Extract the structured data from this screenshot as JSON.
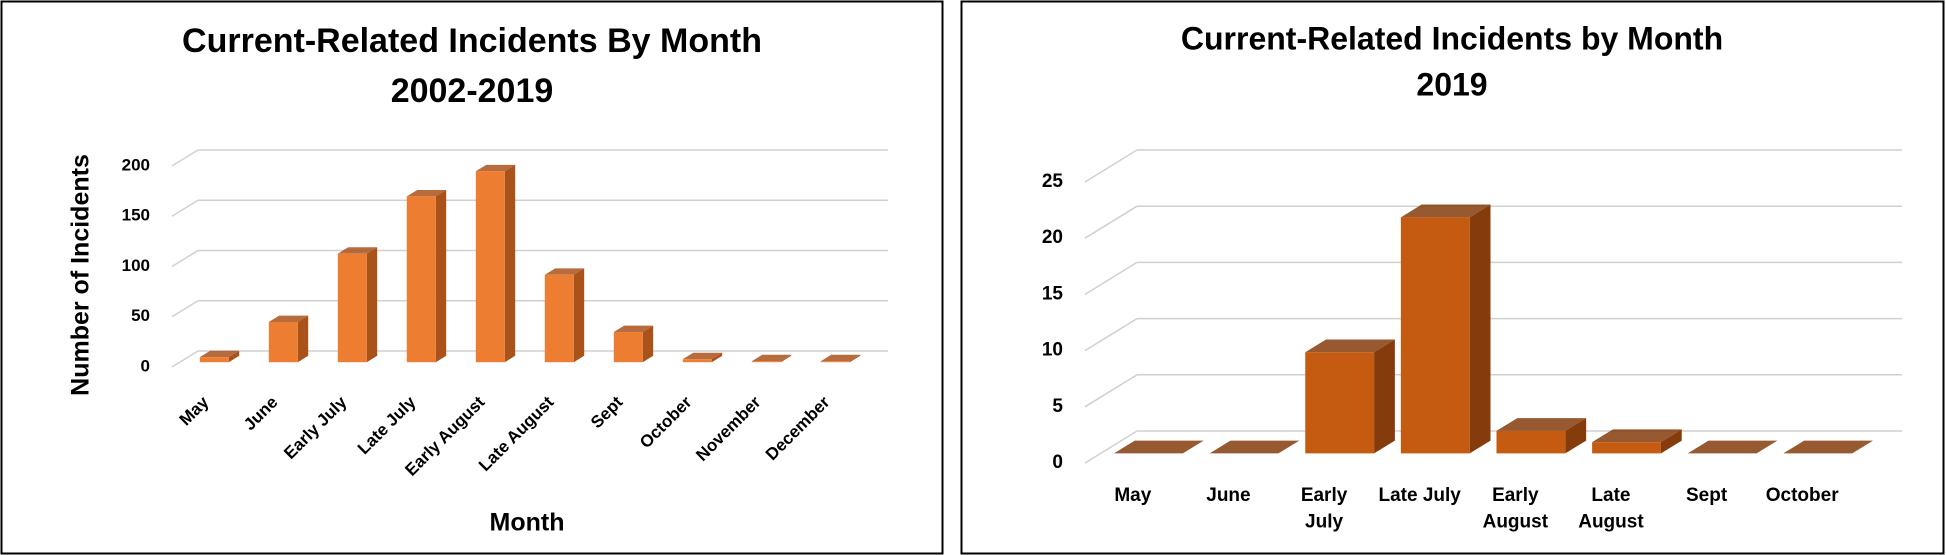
{
  "chart_data": [
    {
      "type": "bar3d",
      "title": [
        "Current-Related Incidents By Month",
        "2002-2019"
      ],
      "categories": [
        "May",
        "June",
        "Early July",
        "Late July",
        "Early August",
        "Late August",
        "Sept",
        "October",
        "November",
        "December"
      ],
      "values": [
        5,
        40,
        108,
        165,
        190,
        87,
        30,
        3,
        1,
        1
      ],
      "color": "#ed7d31",
      "side_color": "#a9521a",
      "ylim": [
        0,
        200
      ],
      "yticks": [
        0,
        50,
        100,
        150,
        200
      ],
      "grid": true,
      "x_label": "Month",
      "y_label": "Number of Incidents"
    },
    {
      "type": "bar3d",
      "title": [
        "Current-Related Incidents by Month",
        "2019"
      ],
      "categories": [
        "May",
        "June",
        "Early July",
        "Late July",
        "Early August",
        "Late August",
        "Sept",
        "October"
      ],
      "values": [
        0,
        0,
        9,
        21,
        2,
        1,
        0,
        0
      ],
      "color": "#c55a11",
      "side_color": "#843c0c",
      "ylim": [
        0,
        25
      ],
      "yticks": [
        0,
        5,
        10,
        15,
        20,
        25
      ],
      "grid": true
    }
  ]
}
